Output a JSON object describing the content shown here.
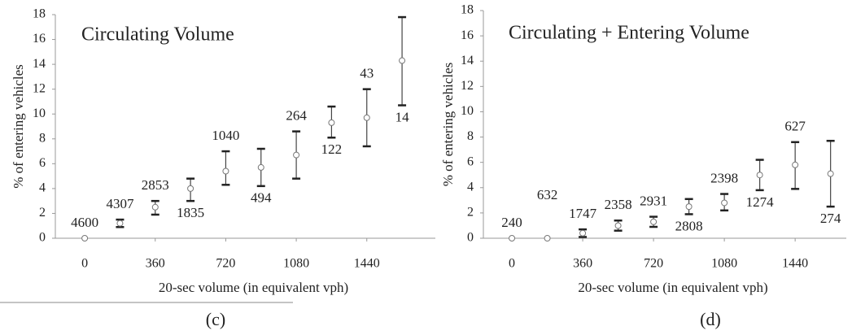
{
  "chart_data": [
    {
      "type": "scatter",
      "title": "Circulating Volume",
      "color": "#777777",
      "x": [
        0,
        180,
        360,
        540,
        720,
        900,
        1080,
        1260,
        1440,
        1620
      ],
      "values": [
        0,
        1.2,
        2.5,
        4.0,
        5.4,
        5.7,
        6.7,
        9.3,
        9.7,
        14.3
      ],
      "lower": [
        null,
        0.9,
        1.9,
        3.0,
        4.3,
        4.2,
        4.8,
        8.1,
        7.4,
        10.7
      ],
      "upper": [
        null,
        1.5,
        3.0,
        4.8,
        7.0,
        7.2,
        8.6,
        10.6,
        12.0,
        17.8
      ],
      "counts": [
        4600,
        4307,
        2853,
        1835,
        1040,
        494,
        264,
        122,
        43,
        14
      ],
      "xlim": [
        -150,
        1790
      ],
      "xticks": [
        0,
        360,
        720,
        1080,
        1440
      ],
      "ylim": [
        0,
        18
      ],
      "yticks": [
        0,
        2,
        4,
        6,
        8,
        10,
        12,
        14,
        16,
        18
      ],
      "xlabel": "20-sec volume (in equivalent vph)",
      "ylabel": "% of entering vehicles",
      "caption": "(c)"
    },
    {
      "type": "scatter",
      "title": "Circulating + Entering Volume",
      "color": "#777777",
      "x": [
        0,
        180,
        360,
        540,
        720,
        900,
        1080,
        1260,
        1440,
        1620
      ],
      "values": [
        0,
        0,
        0.4,
        1.0,
        1.3,
        2.5,
        2.8,
        5.0,
        5.8,
        5.1
      ],
      "lower": [
        null,
        null,
        0.1,
        0.6,
        0.9,
        1.9,
        2.2,
        3.8,
        3.9,
        2.5
      ],
      "upper": [
        null,
        null,
        0.7,
        1.4,
        1.7,
        3.1,
        3.5,
        6.2,
        7.6,
        7.7
      ],
      "counts": [
        240,
        632,
        1747,
        2358,
        2931,
        2808,
        2398,
        1274,
        627,
        274
      ],
      "xlim": [
        -145,
        1700
      ],
      "xticks": [
        0,
        360,
        720,
        1080,
        1440
      ],
      "ylim": [
        0,
        18
      ],
      "yticks": [
        0,
        2,
        4,
        6,
        8,
        10,
        12,
        14,
        16,
        18
      ],
      "xlabel": "20-sec volume (in equivalent vph)",
      "ylabel": "% of entering vehicles",
      "caption": "(d)"
    }
  ]
}
